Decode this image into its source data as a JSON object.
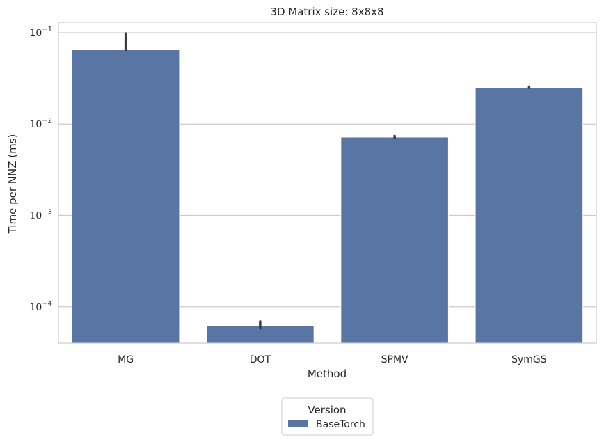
{
  "chart_data": {
    "type": "bar",
    "title": "3D Matrix size: 8x8x8",
    "xlabel": "Method",
    "ylabel": "Time per NNZ (ms)",
    "yscale": "log",
    "ylim": [
      4e-05,
      0.13
    ],
    "yticks": [
      {
        "value": 0.0001,
        "base": "10",
        "exp": "−4"
      },
      {
        "value": 0.001,
        "base": "10",
        "exp": "−3"
      },
      {
        "value": 0.01,
        "base": "10",
        "exp": "−2"
      },
      {
        "value": 0.1,
        "base": "10",
        "exp": "−1"
      }
    ],
    "categories": [
      "MG",
      "DOT",
      "SPMV",
      "SymGS"
    ],
    "series": [
      {
        "name": "BaseTorch",
        "color": "#5975a4",
        "values": [
          0.065,
          6.2e-05,
          0.0072,
          0.025
        ],
        "error_low": [
          0.065,
          5.8e-05,
          0.0071,
          0.025
        ],
        "error_high": [
          0.098,
          6.9e-05,
          0.0074,
          0.025
        ]
      }
    ],
    "grid": true,
    "legend": {
      "title": "Version",
      "placement": "bottom-center"
    }
  }
}
